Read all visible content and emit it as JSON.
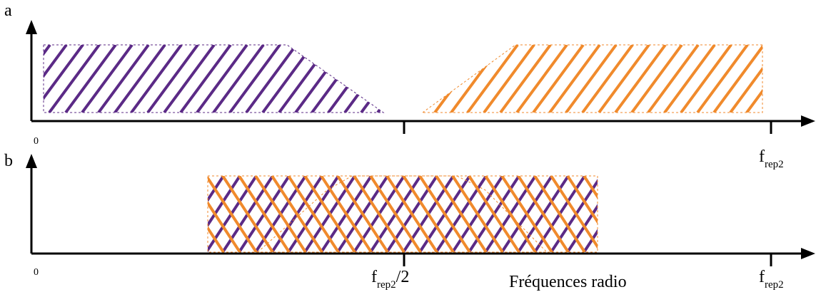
{
  "panels": [
    {
      "label": "a",
      "origin_label": "0",
      "tick_labels": [
        {
          "main": "",
          "sub": "",
          "after": ""
        },
        {
          "main": "f",
          "sub": "rep2",
          "after": ""
        }
      ]
    },
    {
      "label": "b",
      "origin_label": "0",
      "tick_labels": [
        {
          "main": "f",
          "sub": "rep2",
          "after": "/2"
        },
        {
          "main": "f",
          "sub": "rep2",
          "after": ""
        }
      ]
    }
  ],
  "x_axis_title": "Fréquences radio",
  "colors": {
    "purple": "#5b2a86",
    "orange": "#f08a2c",
    "axis": "#000000"
  }
}
